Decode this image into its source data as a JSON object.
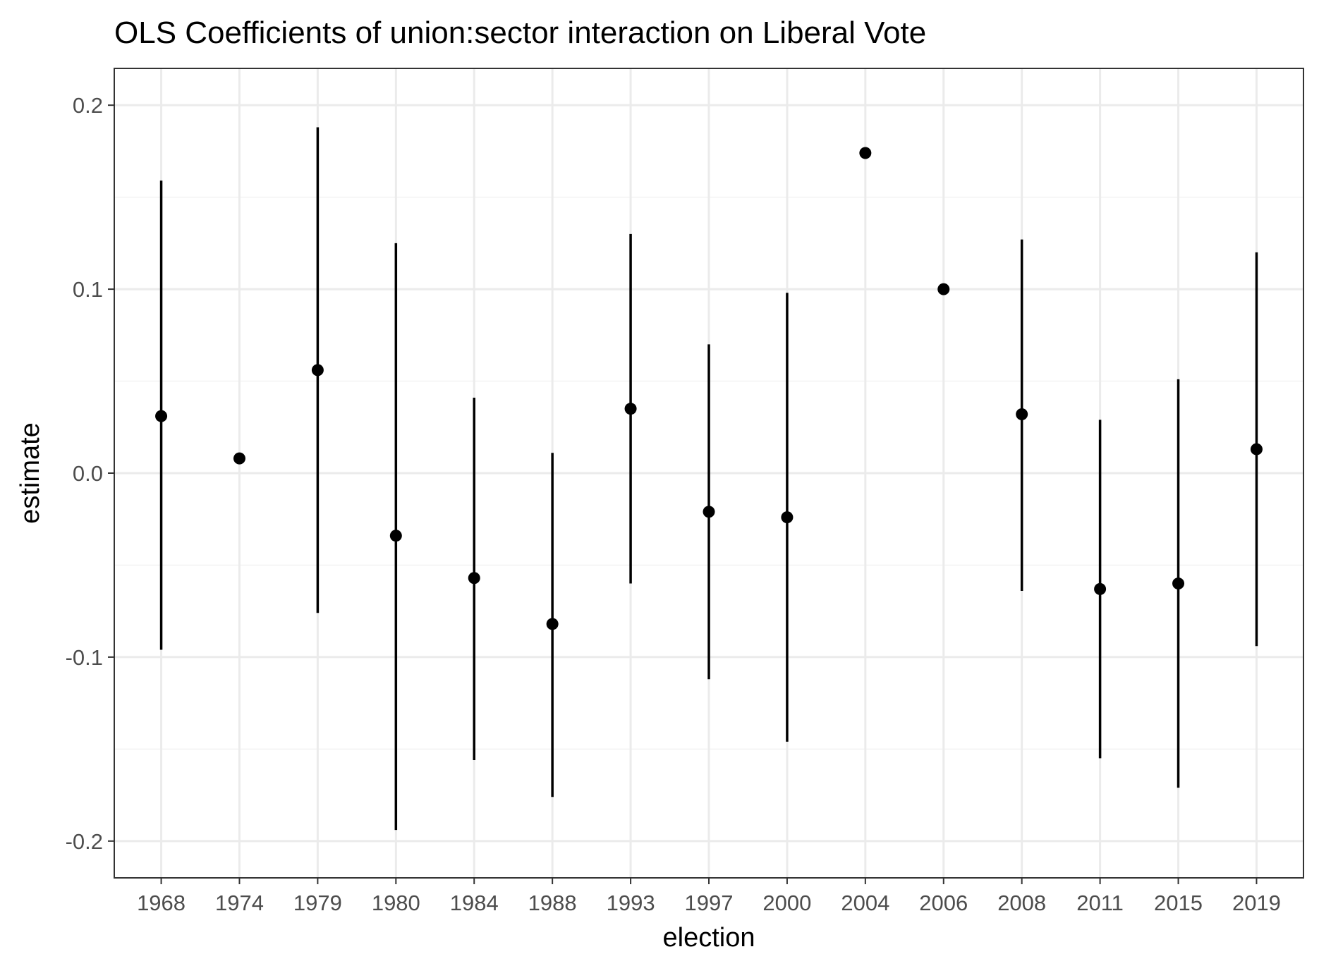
{
  "chart_data": {
    "type": "scatter",
    "title": "OLS Coefficients of union:sector interaction on Liberal Vote",
    "xlabel": "election",
    "ylabel": "estimate",
    "ylim": [
      -0.22,
      0.22
    ],
    "yticks": [
      -0.2,
      -0.1,
      0.0,
      0.1,
      0.2
    ],
    "ytick_labels": [
      "-0.2",
      "-0.1",
      "0.0",
      "0.1",
      "0.2"
    ],
    "grid": true,
    "categories": [
      "1968",
      "1974",
      "1979",
      "1980",
      "1984",
      "1988",
      "1993",
      "1997",
      "2000",
      "2004",
      "2006",
      "2008",
      "2011",
      "2015",
      "2019"
    ],
    "series": [
      {
        "values": [
          0.031,
          0.008,
          0.056,
          -0.034,
          -0.057,
          -0.082,
          0.035,
          -0.021,
          -0.024,
          0.174,
          0.1,
          0.032,
          -0.063,
          -0.06,
          0.013
        ],
        "lower": [
          -0.096,
          null,
          -0.076,
          -0.194,
          -0.156,
          -0.176,
          -0.06,
          -0.112,
          -0.146,
          null,
          null,
          -0.064,
          -0.155,
          -0.171,
          -0.094
        ],
        "upper": [
          0.159,
          null,
          0.188,
          0.125,
          0.041,
          0.011,
          0.13,
          0.07,
          0.098,
          null,
          null,
          0.127,
          0.029,
          0.051,
          0.12
        ],
        "color": "#000000"
      }
    ]
  }
}
